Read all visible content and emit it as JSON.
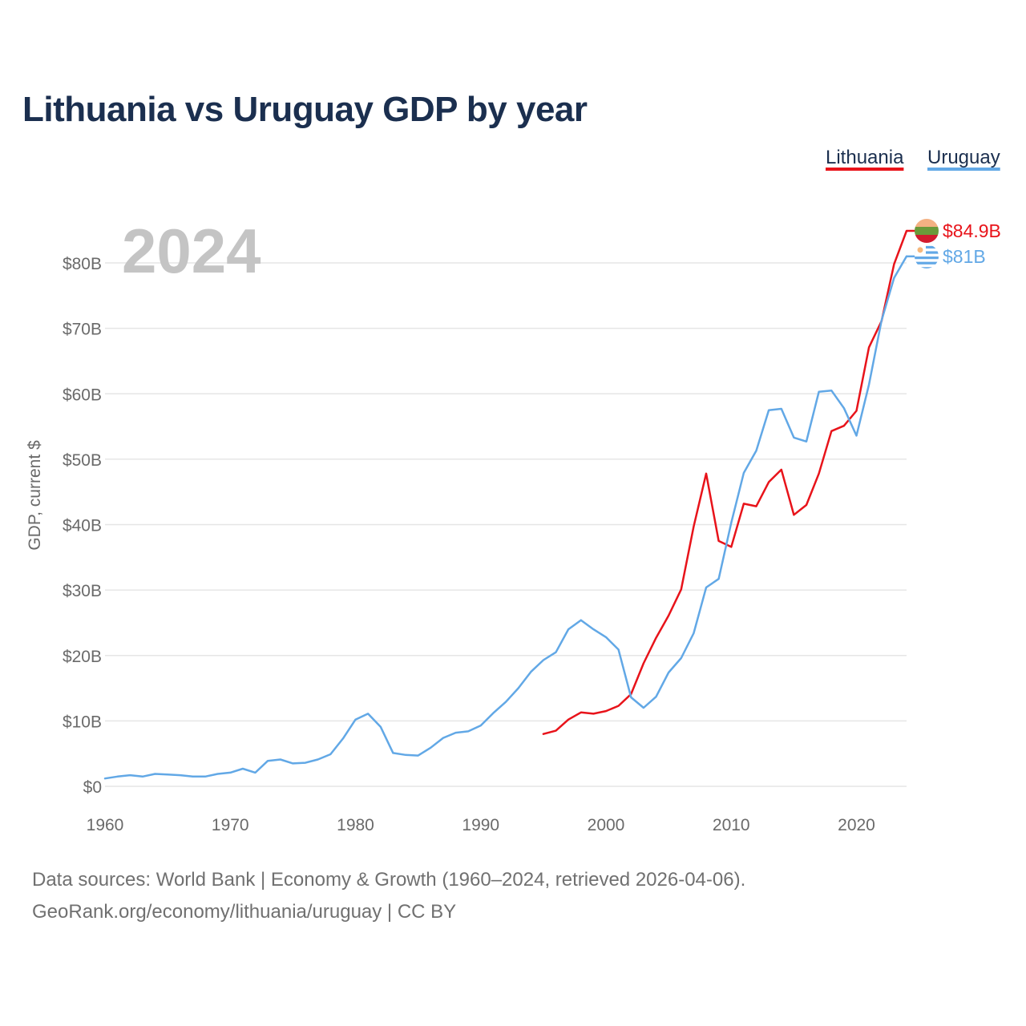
{
  "title": "Lithuania vs Uruguay GDP by year",
  "footer": {
    "line1": "Data sources: World Bank | Economy & Growth (1960–2024, retrieved 2026-04-06).",
    "line2": "GeoRank.org/economy/lithuania/uruguay | CC BY"
  },
  "colors": {
    "lithuania": "#e8131a",
    "uruguay": "#62a8e6",
    "title": "#1b2f4f"
  },
  "chart_data": {
    "type": "line",
    "title": "Lithuania vs Uruguay GDP by year",
    "xlabel": "",
    "ylabel": "GDP, current $",
    "xlim": [
      1960,
      2024
    ],
    "ylim": [
      0,
      80
    ],
    "y_unit": "billion USD",
    "x_ticks": [
      1960,
      1970,
      1980,
      1990,
      2000,
      2010,
      2020
    ],
    "x_tick_labels": [
      "1960",
      "1970",
      "1980",
      "1990",
      "2000",
      "2010",
      "2020"
    ],
    "y_ticks": [
      0,
      10,
      20,
      30,
      40,
      50,
      60,
      70,
      80
    ],
    "y_tick_labels": [
      "$0",
      "$10B",
      "$20B",
      "$30B",
      "$40B",
      "$50B",
      "$60B",
      "$70B",
      "$80B"
    ],
    "grid": true,
    "legend_position": "top-right",
    "year_label": "2024",
    "series": [
      {
        "name": "Lithuania",
        "color": "#e8131a",
        "end_label": "$84.9B",
        "flag_icon": "lithuania-flag-icon",
        "x": [
          1995,
          1996,
          1997,
          1998,
          1999,
          2000,
          2001,
          2002,
          2003,
          2004,
          2005,
          2006,
          2007,
          2008,
          2009,
          2010,
          2011,
          2012,
          2013,
          2014,
          2015,
          2016,
          2017,
          2018,
          2019,
          2020,
          2021,
          2022,
          2023,
          2024
        ],
        "values": [
          8.0,
          8.5,
          10.2,
          11.3,
          11.1,
          11.5,
          12.3,
          14.1,
          18.8,
          22.7,
          26.1,
          30.1,
          39.7,
          47.8,
          37.5,
          36.6,
          43.2,
          42.8,
          46.5,
          48.4,
          41.5,
          43.0,
          47.8,
          54.3,
          55.1,
          57.4,
          67.1,
          71.1,
          79.8,
          84.9
        ]
      },
      {
        "name": "Uruguay",
        "color": "#62a8e6",
        "end_label": "$81B",
        "flag_icon": "uruguay-flag-icon",
        "x": [
          1960,
          1961,
          1962,
          1963,
          1964,
          1965,
          1966,
          1967,
          1968,
          1969,
          1970,
          1971,
          1972,
          1973,
          1974,
          1975,
          1976,
          1977,
          1978,
          1979,
          1980,
          1981,
          1982,
          1983,
          1984,
          1985,
          1986,
          1987,
          1988,
          1989,
          1990,
          1991,
          1992,
          1993,
          1994,
          1995,
          1996,
          1997,
          1998,
          1999,
          2000,
          2001,
          2002,
          2003,
          2004,
          2005,
          2006,
          2007,
          2008,
          2009,
          2010,
          2011,
          2012,
          2013,
          2014,
          2015,
          2016,
          2017,
          2018,
          2019,
          2020,
          2021,
          2022,
          2023,
          2024
        ],
        "values": [
          1.2,
          1.5,
          1.7,
          1.5,
          1.9,
          1.8,
          1.7,
          1.5,
          1.5,
          1.9,
          2.1,
          2.7,
          2.1,
          3.9,
          4.1,
          3.5,
          3.6,
          4.1,
          4.9,
          7.3,
          10.2,
          11.1,
          9.1,
          5.1,
          4.8,
          4.7,
          5.9,
          7.4,
          8.2,
          8.4,
          9.3,
          11.2,
          12.9,
          15.0,
          17.5,
          19.3,
          20.5,
          24.0,
          25.4,
          24.0,
          22.8,
          20.9,
          13.6,
          12.0,
          13.7,
          17.4,
          19.6,
          23.4,
          30.4,
          31.7,
          40.3,
          47.9,
          51.3,
          57.5,
          57.7,
          53.3,
          52.7,
          60.3,
          60.5,
          57.8,
          53.6,
          61.4,
          71.2,
          77.7,
          81.0
        ]
      }
    ]
  }
}
